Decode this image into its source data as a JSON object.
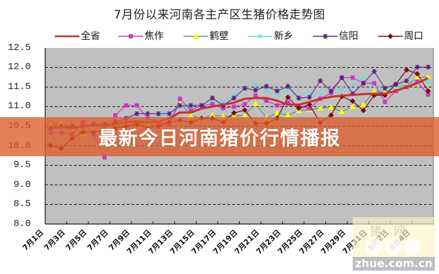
{
  "banner": {
    "text": "最新今日河南猪价行情播报"
  },
  "watermark": {
    "top": "猪网",
    "bottom": "zhue.com.cn"
  },
  "chart_data": {
    "type": "line",
    "title": "7月份以来河南各主产区生猪价格走势图",
    "xlabel": "",
    "ylabel": "",
    "ylim": [
      8.0,
      12.5
    ],
    "yticks": [
      "12.5",
      "12.0",
      "11.5",
      "11.0",
      "10.5",
      "10.0",
      "9.5",
      "9.0",
      "8.5",
      "8.0"
    ],
    "grid": true,
    "legend_position": "top",
    "x": [
      "7月1日",
      "7月2日",
      "7月3日",
      "7月4日",
      "7月5日",
      "7月6日",
      "7月7日",
      "7月8日",
      "7月9日",
      "7月10日",
      "7月11日",
      "7月12日",
      "7月13日",
      "7月14日",
      "7月15日",
      "7月16日",
      "7月17日",
      "7月18日",
      "7月19日",
      "7月20日",
      "7月21日",
      "7月22日",
      "7月23日",
      "7月24日",
      "7月25日",
      "7月26日",
      "7月27日",
      "7月28日",
      "7月29日",
      "7月30日",
      "7月31日",
      "8月1日",
      "8月2日",
      "8月3日",
      "8月4日",
      "8月5日"
    ],
    "xtick_labels": [
      "7月1日",
      "7月3日",
      "7月5日",
      "7月7日",
      "7月9日",
      "7月11日",
      "7月13日",
      "7月15日",
      "7月17日",
      "7月19日",
      "7月21日",
      "7月23日",
      "7月25日",
      "7月27日",
      "7月29日",
      "7月31日",
      "8月2日",
      "8月4日"
    ],
    "series": [
      {
        "name": "全省",
        "color": "#C8302A",
        "marker": "none",
        "marker_color": "#C8302A",
        "width": 3,
        "values": [
          10.45,
          10.48,
          10.45,
          10.5,
          10.52,
          10.5,
          10.55,
          10.6,
          10.62,
          10.6,
          10.62,
          10.7,
          10.85,
          10.85,
          10.95,
          11.0,
          11.05,
          11.1,
          11.2,
          11.22,
          11.22,
          11.15,
          11.05,
          11.05,
          11.12,
          11.2,
          11.25,
          11.28,
          11.3,
          11.32,
          11.33,
          11.33,
          11.4,
          11.5,
          11.6,
          11.73
        ]
      },
      {
        "name": "焦作",
        "color": "#CC33CC",
        "marker": "square",
        "marker_color": "#CC33CC",
        "width": 1.2,
        "values": [
          10.33,
          10.33,
          10.3,
          10.6,
          10.3,
          9.7,
          10.78,
          11.03,
          11.03,
          10.7,
          10.6,
          10.55,
          11.2,
          10.9,
          11.03,
          11.06,
          10.96,
          11.0,
          11.06,
          11.28,
          11.15,
          11.03,
          11.1,
          11.0,
          10.95,
          11.2,
          11.35,
          11.74,
          11.74,
          11.6,
          11.6,
          11.12,
          11.4,
          11.5,
          11.64,
          11.31
        ]
      },
      {
        "name": "鹤壁",
        "color": "#5E8F80",
        "marker": "triangle",
        "marker_color": "#FFFF00",
        "width": 1.2,
        "values": [
          10.52,
          10.6,
          10.45,
          10.3,
          10.4,
          10.6,
          10.5,
          10.45,
          10.6,
          10.5,
          10.55,
          10.6,
          11.1,
          10.78,
          10.7,
          10.78,
          10.75,
          10.76,
          10.78,
          11.08,
          10.71,
          10.84,
          10.78,
          10.9,
          10.92,
          10.96,
          10.98,
          10.87,
          11.0,
          11.05,
          11.4,
          11.36,
          11.5,
          11.54,
          11.74,
          11.76
        ]
      },
      {
        "name": "新乡",
        "color": "#66DDDD",
        "marker": "cross",
        "marker_color": "#66DDDD",
        "width": 1.2,
        "values": [
          10.4,
          10.45,
          10.45,
          10.5,
          10.5,
          10.5,
          10.6,
          10.65,
          10.7,
          10.7,
          10.75,
          10.8,
          11.05,
          10.95,
          11.0,
          11.1,
          11.1,
          11.3,
          11.45,
          11.57,
          11.4,
          11.3,
          11.45,
          11.25,
          11.36,
          11.35,
          11.3,
          11.45,
          11.55,
          11.76,
          11.5,
          11.47,
          11.5,
          11.5,
          11.64,
          11.66
        ]
      },
      {
        "name": "信阳",
        "color": "#6B2D8C",
        "marker": "star",
        "marker_color": "#5A1F7A",
        "width": 1.2,
        "values": [
          10.45,
          10.5,
          10.5,
          10.5,
          10.55,
          10.55,
          10.6,
          10.7,
          10.82,
          10.82,
          10.82,
          10.82,
          11.03,
          11.03,
          11.03,
          11.22,
          11.03,
          11.22,
          11.47,
          11.42,
          11.52,
          11.4,
          11.52,
          11.22,
          11.24,
          11.66,
          11.4,
          11.74,
          11.33,
          11.6,
          11.9,
          11.47,
          11.57,
          11.66,
          12.01,
          12.01
        ]
      },
      {
        "name": "周口",
        "color": "#7B0C0C",
        "marker": "diamond",
        "marker_color": "#7B0C0C",
        "width": 1.2,
        "values": [
          10.01,
          9.93,
          10.19,
          10.35,
          10.35,
          10.4,
          10.45,
          10.5,
          10.55,
          10.45,
          10.5,
          10.6,
          10.65,
          10.6,
          10.7,
          10.7,
          10.6,
          10.84,
          10.91,
          10.57,
          10.57,
          10.7,
          11.24,
          10.96,
          11.05,
          10.59,
          10.78,
          11.26,
          11.14,
          10.9,
          11.29,
          11.29,
          11.57,
          11.94,
          11.84,
          11.4
        ]
      }
    ]
  }
}
